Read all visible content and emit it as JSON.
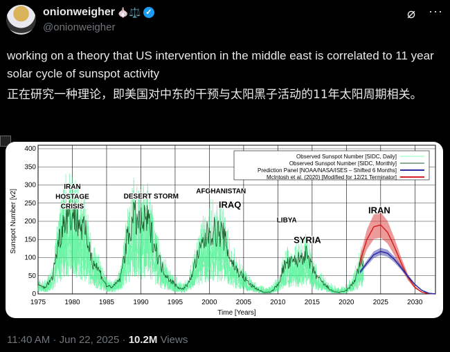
{
  "tweet": {
    "display_name": "onionweigher",
    "name_emojis": "🧄⚖️",
    "handle": "@onionweigher",
    "text_en": "working on a theory that US intervention in the middle east is correlated to 11 year solar cycle of sunspot activity",
    "text_zh": "正在研究一种理论，即美国对中东的干预与太阳黑子活动的11年太阳周期相关。",
    "time": "11:40 AM",
    "date": "Jun 22, 2025",
    "views_count": "10.2M",
    "views_label": "Views",
    "sep": "·",
    "icons": {
      "verified": "verified-badge-icon",
      "grok": "grok-icon",
      "more": "more-icon"
    },
    "colors": {
      "verified": "#1d9bf0",
      "background": "#000000"
    }
  },
  "chart_data": {
    "type": "line",
    "xlabel": "Time [Years]",
    "ylabel": "Sunspot Number [v2]",
    "xlim": [
      1975,
      2033
    ],
    "ylim": [
      0,
      400
    ],
    "xticks": [
      1975,
      1980,
      1985,
      1990,
      1995,
      2000,
      2005,
      2010,
      2015,
      2020,
      2025,
      2030
    ],
    "yticks": [
      0,
      50,
      100,
      150,
      200,
      250,
      300,
      350,
      400
    ],
    "legend_placement": "top-right",
    "legend": [
      {
        "name": "Observed Sunspot Number [SIDC, Daily]",
        "color": "#7dffb0"
      },
      {
        "name": "Observed Sunspot Number [SIDC, Monthly]",
        "color": "#1a5a2a"
      },
      {
        "name": "Prediction Panel [NOAA/NASA/ISES – Shifted 6 Months]",
        "color": "#2a2aa0"
      },
      {
        "name": "McIntosh et al. (2020) [Modified for 12/21 Terminator]",
        "color": "#d42020"
      }
    ],
    "observed": {
      "x": [
        1975,
        1976,
        1977,
        1978,
        1979,
        1980,
        1981,
        1982,
        1983,
        1984,
        1985,
        1986,
        1987,
        1988,
        1989,
        1990,
        1991,
        1992,
        1993,
        1994,
        1995,
        1996,
        1997,
        1998,
        1999,
        2000,
        2001,
        2002,
        2003,
        2004,
        2005,
        2006,
        2007,
        2008,
        2009,
        2010,
        2011,
        2012,
        2013,
        2014,
        2015,
        2016,
        2017,
        2018,
        2019,
        2020,
        2021,
        2022
      ],
      "y": [
        23,
        18,
        40,
        145,
        220,
        219,
        198,
        162,
        91,
        61,
        21,
        20,
        42,
        149,
        211,
        191,
        203,
        134,
        76,
        45,
        25,
        12,
        29,
        88,
        136,
        174,
        170,
        164,
        100,
        65,
        46,
        25,
        13,
        4,
        5,
        25,
        81,
        85,
        94,
        113,
        70,
        40,
        22,
        7,
        4,
        9,
        29,
        83
      ]
    },
    "prediction_mcintosh": {
      "x": [
        2022,
        2023,
        2024,
        2025,
        2026,
        2027,
        2028,
        2029,
        2030,
        2031,
        2032,
        2033
      ],
      "y": [
        90,
        150,
        185,
        190,
        170,
        130,
        85,
        45,
        18,
        5,
        1,
        0
      ],
      "band": 35
    },
    "prediction_panel": {
      "x": [
        2022,
        2023,
        2024,
        2025,
        2026,
        2027,
        2028,
        2029,
        2030,
        2031,
        2032,
        2033
      ],
      "y": [
        60,
        85,
        108,
        117,
        112,
        95,
        72,
        48,
        26,
        10,
        2,
        0
      ],
      "band": 10
    },
    "annotations": [
      {
        "text": "IRAN",
        "x": 1980,
        "y": 290
      },
      {
        "text": "HOSTAGE",
        "x": 1980,
        "y": 262
      },
      {
        "text": "CRISIS",
        "x": 1980,
        "y": 235
      },
      {
        "text": "DESERT STORM",
        "x": 1991.5,
        "y": 263
      },
      {
        "text": "AFGHANISTAN",
        "x": 2001.7,
        "y": 277
      },
      {
        "text": "IRAQ",
        "x": 2003,
        "y": 237
      },
      {
        "text": "LIBYA",
        "x": 2011.3,
        "y": 197
      },
      {
        "text": "SYRIA",
        "x": 2014.3,
        "y": 140
      },
      {
        "text": "IRAN",
        "x": 2024.8,
        "y": 222
      }
    ]
  }
}
